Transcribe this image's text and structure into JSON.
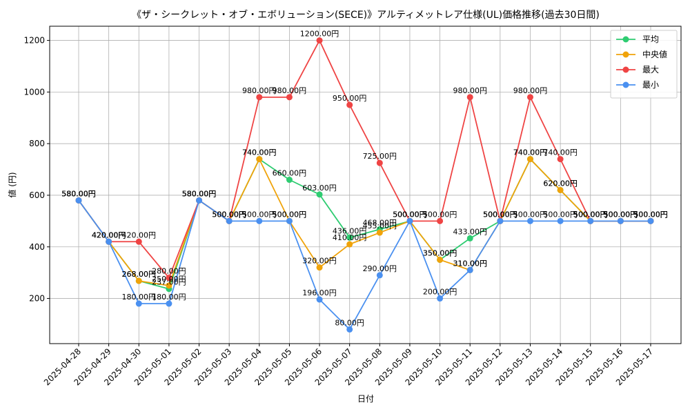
{
  "chart_data": {
    "type": "line",
    "title": "《ザ・シークレット・オブ・エボリューション(SECE)》アルティメットレア仕様(UL)価格推移(過去30日間)",
    "xlabel": "日付",
    "ylabel": "値 (円)",
    "ylim": [
      25,
      1255
    ],
    "yticks": [
      200,
      400,
      600,
      800,
      1000,
      1200
    ],
    "grid": true,
    "legend_position": "top-right",
    "label_suffix": "円",
    "x": [
      "2025-04-28",
      "2025-04-29",
      "2025-04-30",
      "2025-05-01",
      "2025-05-02",
      "2025-05-03",
      "2025-05-04",
      "2025-05-05",
      "2025-05-06",
      "2025-05-07",
      "2025-05-08",
      "2025-05-09",
      "2025-05-10",
      "2025-05-11",
      "2025-05-12",
      "2025-05-13",
      "2025-05-14",
      "2025-05-15",
      "2025-05-16",
      "2025-05-17"
    ],
    "series": [
      {
        "name": "平均",
        "color": "#2ecc71",
        "values": [
          580,
          420,
          268,
          237,
          580,
          500,
          740,
          660,
          603,
          436,
          468,
          500,
          350,
          433,
          500,
          740,
          620,
          500,
          500,
          500
        ]
      },
      {
        "name": "中央値",
        "color": "#f0a30a",
        "values": [
          580,
          420,
          268,
          250,
          580,
          500,
          740,
          500,
          320,
          410,
          455,
          500,
          350,
          310,
          500,
          740,
          620,
          500,
          500,
          500
        ]
      },
      {
        "name": "最大",
        "color": "#ef4444",
        "values": [
          580,
          420,
          420,
          280,
          580,
          500,
          980,
          980,
          1200,
          950,
          725,
          500,
          500,
          980,
          500,
          980,
          740,
          500,
          500,
          500
        ]
      },
      {
        "name": "最小",
        "color": "#4a90f0",
        "values": [
          580,
          420,
          180,
          180,
          580,
          500,
          500,
          500,
          196,
          80,
          290,
          500,
          200,
          310,
          500,
          500,
          500,
          500,
          500,
          500
        ]
      }
    ]
  }
}
